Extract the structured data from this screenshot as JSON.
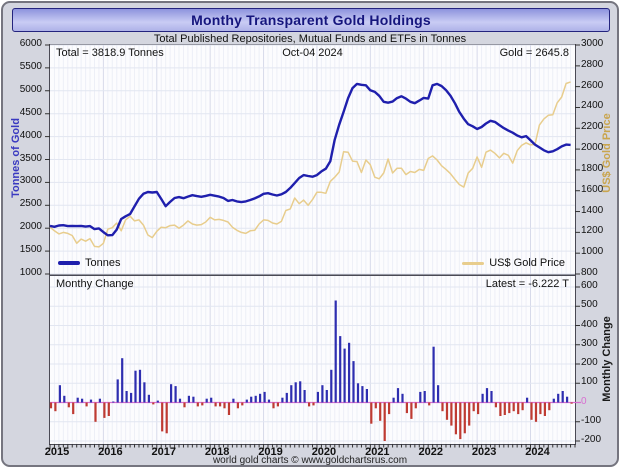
{
  "header": {
    "title": "Monthy Transparent Gold Holdings",
    "subtitle": "Total Published Repositories, Mutual Funds and ETFs in Tonnes"
  },
  "top_panel": {
    "annotation_total": "Total = 3818.9 Tonnes",
    "annotation_date": "Oct-04 2024",
    "annotation_gold": "Gold = 2645.8",
    "left_axis_label": "Tonnes of Gold",
    "right_axis_label": "US$ Gold Price",
    "legend": {
      "tonnes": "Tonnes",
      "gold": "US$ Gold Price"
    }
  },
  "bottom_panel": {
    "label": "Monthy Change",
    "latest": "Latest = -6.222 T",
    "right_axis_label": "Monthly Change"
  },
  "footer": {
    "credit": "world gold charts © www.goldchartsrus.com"
  },
  "colors": {
    "tonnes_line": "#1f1fad",
    "gold_line": "#e8cd8d",
    "bar_positive": "#2e2eb0",
    "bar_negative": "#bf3b32",
    "zero_line": "#d86fd0",
    "grid_year": "#d7daea",
    "grid_month": "#edeff7",
    "grid_horizontal": "#e2e6f1",
    "tick": "#333333"
  },
  "chart_data": {
    "x": {
      "start": "2015-01",
      "end": "2024-10",
      "months": 118,
      "year_labels": [
        2015,
        2016,
        2017,
        2018,
        2019,
        2020,
        2021,
        2022,
        2023,
        2024
      ]
    },
    "top": {
      "type": "line",
      "title": "Monthy Transparent Gold Holdings",
      "left_ylim": [
        1000,
        6000
      ],
      "right_ylim": [
        800,
        3000
      ],
      "left_ticks": [
        6000,
        5500,
        5000,
        4500,
        4000,
        3500,
        3000,
        2500,
        2000,
        1500,
        1000
      ],
      "right_ticks": [
        3000,
        2800,
        2600,
        2400,
        2200,
        2000,
        1800,
        1600,
        1400,
        1200,
        1000,
        800
      ],
      "series": [
        {
          "name": "Tonnes",
          "axis": "left",
          "values": [
            2050,
            2030,
            2060,
            2065,
            2045,
            2050,
            2045,
            2050,
            2035,
            2045,
            1980,
            1995,
            1915,
            1845,
            1850,
            1970,
            2200,
            2260,
            2310,
            2475,
            2645,
            2750,
            2790,
            2780,
            2790,
            2640,
            2480,
            2575,
            2660,
            2680,
            2655,
            2690,
            2720,
            2700,
            2685,
            2705,
            2730,
            2710,
            2690,
            2660,
            2595,
            2615,
            2585,
            2570,
            2585,
            2615,
            2650,
            2695,
            2750,
            2765,
            2735,
            2715,
            2740,
            2790,
            2880,
            2985,
            3095,
            3160,
            3140,
            3125,
            3160,
            3240,
            3300,
            3460,
            3930,
            4260,
            4540,
            4840,
            5060,
            5150,
            5130,
            5120,
            5010,
            4975,
            4890,
            4760,
            4740,
            4765,
            4840,
            4880,
            4830,
            4760,
            4730,
            4785,
            4845,
            4830,
            5120,
            5150,
            5105,
            5015,
            4895,
            4730,
            4540,
            4390,
            4270,
            4225,
            4165,
            4210,
            4285,
            4345,
            4320,
            4250,
            4185,
            4130,
            4085,
            4025,
            3985,
            4010,
            3920,
            3825,
            3765,
            3700,
            3660,
            3680,
            3725,
            3785,
            3825,
            3818.9
          ]
        },
        {
          "name": "US$ Gold Price",
          "axis": "right",
          "values": [
            1250,
            1215,
            1185,
            1200,
            1190,
            1170,
            1095,
            1135,
            1115,
            1140,
            1065,
            1060,
            1095,
            1230,
            1245,
            1290,
            1215,
            1320,
            1355,
            1310,
            1320,
            1270,
            1175,
            1150,
            1210,
            1250,
            1245,
            1265,
            1270,
            1240,
            1270,
            1310,
            1280,
            1270,
            1275,
            1300,
            1345,
            1320,
            1325,
            1315,
            1300,
            1250,
            1220,
            1200,
            1190,
            1215,
            1220,
            1280,
            1320,
            1315,
            1290,
            1280,
            1305,
            1410,
            1425,
            1530,
            1475,
            1510,
            1460,
            1515,
            1585,
            1585,
            1575,
            1690,
            1730,
            1780,
            1975,
            1970,
            1885,
            1880,
            1775,
            1895,
            1850,
            1730,
            1715,
            1770,
            1905,
            1770,
            1815,
            1815,
            1755,
            1785,
            1775,
            1805,
            1795,
            1910,
            1935,
            1895,
            1840,
            1805,
            1765,
            1710,
            1660,
            1635,
            1770,
            1815,
            1925,
            1825,
            1970,
            1990,
            1960,
            1915,
            1960,
            1940,
            1865,
            1985,
            2035,
            2060,
            2040,
            2045,
            2230,
            2290,
            2325,
            2330,
            2445,
            2500,
            2630,
            2645.8
          ]
        }
      ]
    },
    "bottom": {
      "type": "bar",
      "name": "Monthly Change",
      "ylim": [
        -222,
        657
      ],
      "right_ticks": [
        600,
        500,
        400,
        300,
        200,
        100,
        0,
        -100,
        -200
      ],
      "latest_value": -6.222,
      "values": [
        -30,
        -45,
        90,
        35,
        -25,
        -60,
        25,
        20,
        -20,
        15,
        -100,
        20,
        -80,
        -70,
        5,
        120,
        230,
        60,
        50,
        165,
        170,
        105,
        40,
        -10,
        10,
        -150,
        -160,
        95,
        85,
        20,
        -25,
        35,
        30,
        -20,
        -15,
        20,
        25,
        -20,
        -20,
        -30,
        -65,
        20,
        -30,
        -15,
        15,
        30,
        35,
        45,
        55,
        15,
        -30,
        -20,
        25,
        50,
        90,
        105,
        110,
        65,
        -20,
        -15,
        55,
        90,
        65,
        170,
        530,
        345,
        280,
        310,
        215,
        100,
        85,
        70,
        -110,
        -30,
        -95,
        -200,
        -60,
        25,
        75,
        45,
        -55,
        -85,
        -30,
        55,
        60,
        -15,
        290,
        90,
        -45,
        -90,
        -120,
        -165,
        -190,
        -160,
        -120,
        -45,
        -60,
        45,
        75,
        60,
        -25,
        -70,
        -65,
        -55,
        -45,
        -60,
        -40,
        25,
        -90,
        -100,
        -60,
        -70,
        -40,
        20,
        45,
        60,
        30,
        -6.222
      ]
    }
  }
}
